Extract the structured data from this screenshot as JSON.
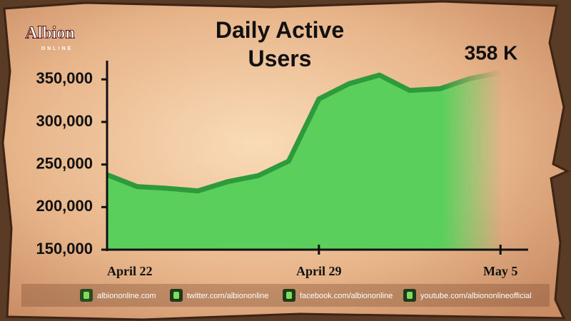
{
  "chart_data": {
    "type": "area",
    "title": "Daily Active Users",
    "annotation": "358 K",
    "categories": [
      "April 22",
      null,
      null,
      null,
      null,
      null,
      null,
      "April 29",
      null,
      null,
      null,
      null,
      null,
      "May 5"
    ],
    "values": [
      238000,
      224000,
      222000,
      219000,
      230000,
      237000,
      254000,
      327000,
      345000,
      355000,
      337000,
      339000,
      351000,
      358000
    ],
    "color": "#5bcf5b",
    "line_color": "#2f9a3b",
    "ylim": [
      150000,
      372000
    ],
    "yticks": [
      {
        "value": 150000,
        "label": "150,000"
      },
      {
        "value": 200000,
        "label": "200,000"
      },
      {
        "value": 250000,
        "label": "250,000"
      },
      {
        "value": 300000,
        "label": "300,000"
      },
      {
        "value": 350000,
        "label": "350,000"
      }
    ],
    "grid": false
  },
  "logo": {
    "title": "Albion",
    "subtitle": "ONLINE"
  },
  "footer": [
    "albiononline.com",
    "twitter.com/albiononline",
    "facebook.com/albiononline",
    "youtube.com/albiononlineofficial"
  ]
}
